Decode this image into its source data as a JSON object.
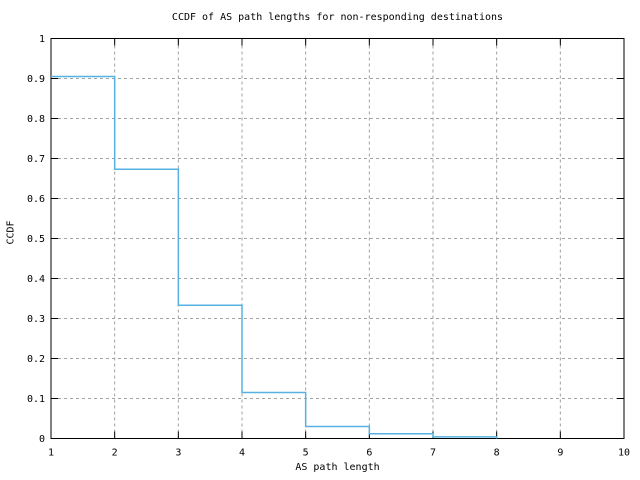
{
  "chart_data": {
    "type": "line",
    "subtype": "step-ccdf",
    "step_mode": "step-after",
    "title": "CCDF of AS path lengths for non-responding destinations",
    "xlabel": "AS path length",
    "ylabel": "CCDF",
    "xlim": [
      1,
      10
    ],
    "ylim": [
      0,
      1
    ],
    "grid": true,
    "legend": "none",
    "x_tick_values": [
      1,
      2,
      3,
      4,
      5,
      6,
      7,
      8,
      9,
      10
    ],
    "x_tick_labels": [
      "1",
      "2",
      "3",
      "4",
      "5",
      "6",
      "7",
      "8",
      "9",
      "10"
    ],
    "y_tick_values": [
      0,
      0.1,
      0.2,
      0.3,
      0.4,
      0.5,
      0.6,
      0.7,
      0.8,
      0.9,
      1
    ],
    "y_tick_labels": [
      "0",
      "0.1",
      "0.2",
      "0.3",
      "0.4",
      "0.5",
      "0.6",
      "0.7",
      "0.8",
      "0.9",
      "1"
    ],
    "points": [
      {
        "x": 1,
        "ccdf": 0.905
      },
      {
        "x": 2,
        "ccdf": 0.673
      },
      {
        "x": 3,
        "ccdf": 0.333
      },
      {
        "x": 4,
        "ccdf": 0.115
      },
      {
        "x": 5,
        "ccdf": 0.03
      },
      {
        "x": 6,
        "ccdf": 0.012
      },
      {
        "x": 7,
        "ccdf": 0.004
      },
      {
        "x": 8,
        "ccdf": 0.0
      }
    ],
    "colors": {
      "line": "#57b2e3",
      "grid": "#a0a0a0",
      "frame": "#000000",
      "background": "#ffffff",
      "text": "#000000"
    }
  }
}
